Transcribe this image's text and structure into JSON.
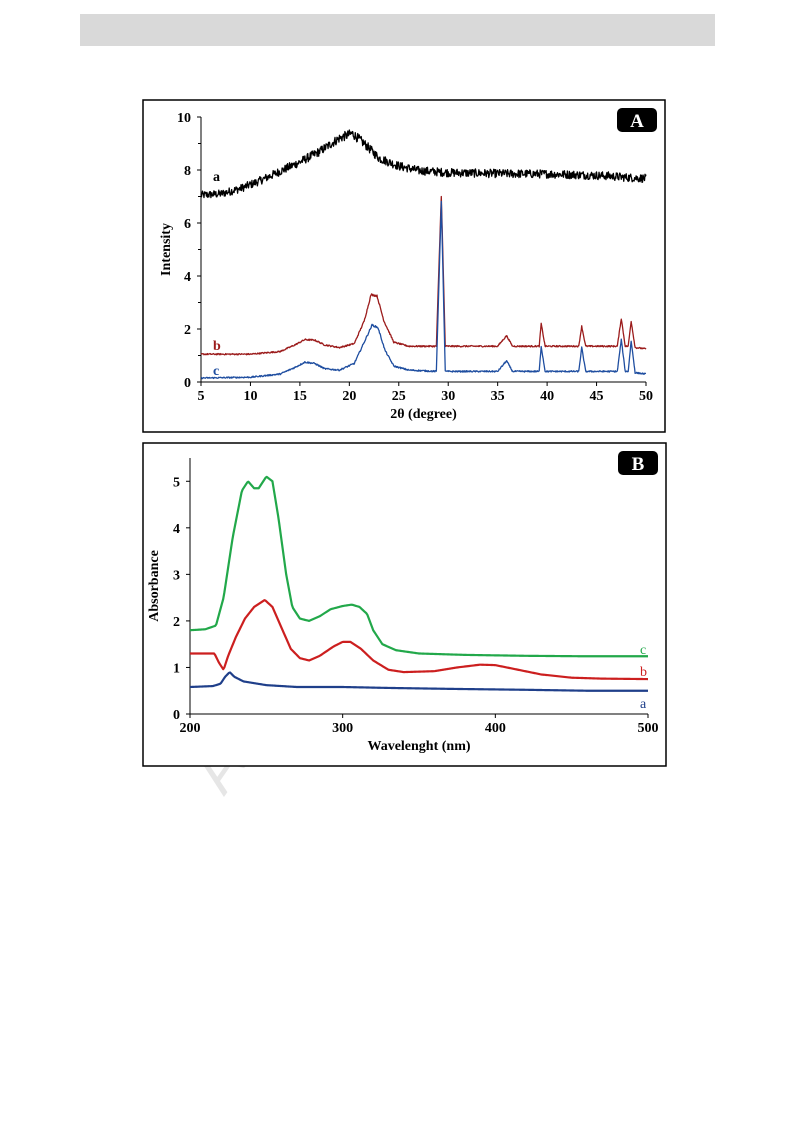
{
  "watermark": "AC",
  "chart_data": [
    {
      "type": "line",
      "panel_label": "A",
      "xlabel": "2θ (degree)",
      "ylabel": "Intensity",
      "xlim": [
        5,
        50
      ],
      "ylim": [
        0,
        10
      ],
      "xticks": [
        5,
        10,
        15,
        20,
        25,
        30,
        35,
        40,
        45,
        50
      ],
      "yticks": [
        0,
        2,
        4,
        6,
        8,
        10
      ],
      "grid": false,
      "series": [
        {
          "name": "a",
          "color": "#000000",
          "baseline": 0,
          "noise": 0.18,
          "points": [
            [
              5,
              7.05
            ],
            [
              7,
              7.1
            ],
            [
              9,
              7.3
            ],
            [
              11,
              7.6
            ],
            [
              13,
              7.95
            ],
            [
              15,
              8.3
            ],
            [
              17,
              8.7
            ],
            [
              19,
              9.2
            ],
            [
              20.3,
              9.38
            ],
            [
              21.5,
              9.0
            ],
            [
              23,
              8.45
            ],
            [
              25,
              8.15
            ],
            [
              27,
              7.98
            ],
            [
              30,
              7.9
            ],
            [
              33,
              7.88
            ],
            [
              36,
              7.86
            ],
            [
              40,
              7.85
            ],
            [
              43,
              7.82
            ],
            [
              46,
              7.78
            ],
            [
              48,
              7.72
            ],
            [
              50,
              7.68
            ]
          ]
        },
        {
          "name": "b",
          "color": "#9b1b1b",
          "baseline": 1.05,
          "noise": 0.07,
          "points": [
            [
              5,
              1.05
            ],
            [
              10,
              1.05
            ],
            [
              13,
              1.15
            ],
            [
              14.5,
              1.4
            ],
            [
              15.5,
              1.6
            ],
            [
              16.5,
              1.58
            ],
            [
              17.5,
              1.4
            ],
            [
              19,
              1.3
            ],
            [
              20.5,
              1.45
            ],
            [
              21.5,
              2.3
            ],
            [
              22.2,
              3.3
            ],
            [
              22.8,
              3.25
            ],
            [
              23.5,
              2.3
            ],
            [
              24.5,
              1.5
            ],
            [
              26,
              1.35
            ],
            [
              28.8,
              1.35
            ],
            [
              29.3,
              7.05
            ],
            [
              29.7,
              1.35
            ],
            [
              35,
              1.35
            ],
            [
              35.9,
              1.75
            ],
            [
              36.5,
              1.35
            ],
            [
              39.2,
              1.35
            ],
            [
              39.4,
              2.2
            ],
            [
              39.8,
              1.35
            ],
            [
              43.2,
              1.35
            ],
            [
              43.5,
              2.1
            ],
            [
              43.9,
              1.35
            ],
            [
              47.1,
              1.35
            ],
            [
              47.5,
              2.4
            ],
            [
              47.9,
              1.35
            ],
            [
              48.2,
              1.35
            ],
            [
              48.5,
              2.3
            ],
            [
              48.9,
              1.3
            ],
            [
              50,
              1.25
            ]
          ]
        },
        {
          "name": "c",
          "color": "#1f4ea0",
          "baseline": 0.15,
          "noise": 0.07,
          "points": [
            [
              5,
              0.15
            ],
            [
              10,
              0.18
            ],
            [
              13,
              0.3
            ],
            [
              14.5,
              0.55
            ],
            [
              15.5,
              0.75
            ],
            [
              16.5,
              0.7
            ],
            [
              17.5,
              0.5
            ],
            [
              19,
              0.45
            ],
            [
              20.5,
              0.7
            ],
            [
              21.5,
              1.5
            ],
            [
              22.3,
              2.15
            ],
            [
              22.9,
              2.05
            ],
            [
              23.6,
              1.2
            ],
            [
              24.5,
              0.6
            ],
            [
              26,
              0.45
            ],
            [
              28.8,
              0.4
            ],
            [
              29.3,
              6.8
            ],
            [
              29.7,
              0.4
            ],
            [
              35,
              0.4
            ],
            [
              35.9,
              0.8
            ],
            [
              36.5,
              0.4
            ],
            [
              39.2,
              0.4
            ],
            [
              39.4,
              1.35
            ],
            [
              39.8,
              0.4
            ],
            [
              43.2,
              0.4
            ],
            [
              43.5,
              1.3
            ],
            [
              43.9,
              0.4
            ],
            [
              47.1,
              0.4
            ],
            [
              47.5,
              1.6
            ],
            [
              47.9,
              0.4
            ],
            [
              48.2,
              0.4
            ],
            [
              48.5,
              1.55
            ],
            [
              48.9,
              0.35
            ],
            [
              50,
              0.3
            ]
          ]
        }
      ]
    },
    {
      "type": "line",
      "panel_label": "B",
      "xlabel": "Wavelenght (nm)",
      "ylabel": "Absorbance",
      "xlim": [
        200,
        500
      ],
      "ylim": [
        0,
        5.5
      ],
      "xticks": [
        200,
        300,
        400,
        500
      ],
      "yticks": [
        0,
        1,
        2,
        3,
        4,
        5
      ],
      "grid": false,
      "series": [
        {
          "name": "c",
          "color": "#22a84a",
          "points": [
            [
              200,
              1.8
            ],
            [
              210,
              1.82
            ],
            [
              217,
              1.9
            ],
            [
              222,
              2.5
            ],
            [
              228,
              3.8
            ],
            [
              234,
              4.8
            ],
            [
              238,
              5.0
            ],
            [
              242,
              4.85
            ],
            [
              245,
              4.85
            ],
            [
              250,
              5.1
            ],
            [
              254,
              5.0
            ],
            [
              258,
              4.2
            ],
            [
              263,
              3.0
            ],
            [
              267,
              2.3
            ],
            [
              272,
              2.05
            ],
            [
              278,
              2.0
            ],
            [
              285,
              2.1
            ],
            [
              292,
              2.25
            ],
            [
              300,
              2.32
            ],
            [
              306,
              2.35
            ],
            [
              311,
              2.3
            ],
            [
              316,
              2.15
            ],
            [
              320,
              1.8
            ],
            [
              326,
              1.5
            ],
            [
              335,
              1.37
            ],
            [
              350,
              1.3
            ],
            [
              380,
              1.27
            ],
            [
              420,
              1.25
            ],
            [
              460,
              1.24
            ],
            [
              500,
              1.24
            ]
          ]
        },
        {
          "name": "b",
          "color": "#cc1f1f",
          "points": [
            [
              200,
              1.3
            ],
            [
              210,
              1.3
            ],
            [
              216,
              1.3
            ],
            [
              219,
              1.1
            ],
            [
              222,
              0.95
            ],
            [
              225,
              1.25
            ],
            [
              230,
              1.65
            ],
            [
              236,
              2.05
            ],
            [
              242,
              2.3
            ],
            [
              249,
              2.45
            ],
            [
              254,
              2.3
            ],
            [
              260,
              1.85
            ],
            [
              266,
              1.4
            ],
            [
              272,
              1.2
            ],
            [
              278,
              1.15
            ],
            [
              285,
              1.25
            ],
            [
              294,
              1.45
            ],
            [
              300,
              1.55
            ],
            [
              305,
              1.55
            ],
            [
              312,
              1.4
            ],
            [
              320,
              1.15
            ],
            [
              330,
              0.95
            ],
            [
              340,
              0.9
            ],
            [
              360,
              0.92
            ],
            [
              375,
              1.0
            ],
            [
              390,
              1.06
            ],
            [
              400,
              1.05
            ],
            [
              415,
              0.95
            ],
            [
              430,
              0.85
            ],
            [
              450,
              0.78
            ],
            [
              470,
              0.76
            ],
            [
              500,
              0.75
            ]
          ]
        },
        {
          "name": "a",
          "color": "#1f3f8a",
          "points": [
            [
              200,
              0.58
            ],
            [
              215,
              0.6
            ],
            [
              220,
              0.65
            ],
            [
              223,
              0.8
            ],
            [
              226,
              0.9
            ],
            [
              229,
              0.8
            ],
            [
              235,
              0.7
            ],
            [
              250,
              0.62
            ],
            [
              270,
              0.58
            ],
            [
              300,
              0.58
            ],
            [
              330,
              0.56
            ],
            [
              370,
              0.54
            ],
            [
              420,
              0.52
            ],
            [
              460,
              0.5
            ],
            [
              500,
              0.5
            ]
          ]
        }
      ]
    }
  ]
}
